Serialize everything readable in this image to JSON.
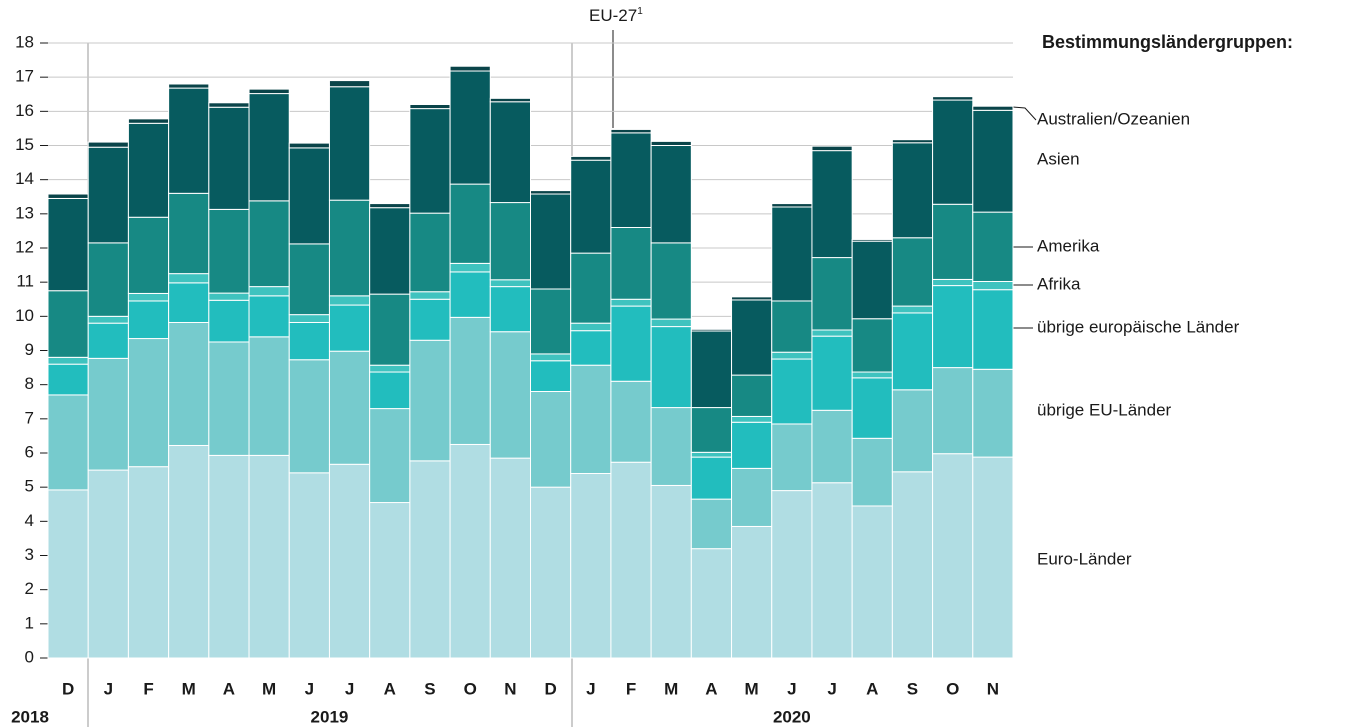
{
  "chart_data": {
    "type": "stacked_bar",
    "legend_title": "Bestimmungsländergruppen:",
    "annotation": {
      "text": "EU-27",
      "footnote": "1"
    },
    "categories": [
      "D",
      "J",
      "F",
      "M",
      "A",
      "M",
      "J",
      "J",
      "A",
      "S",
      "O",
      "N",
      "D",
      "J",
      "F",
      "M",
      "A",
      "M",
      "J",
      "J",
      "A",
      "S",
      "O",
      "N"
    ],
    "year_groups": [
      {
        "label": "2018",
        "months": 1
      },
      {
        "label": "2019",
        "months": 12
      },
      {
        "label": "2020",
        "months": 11
      }
    ],
    "ylim": [
      0,
      18
    ],
    "yticks": [
      0,
      1,
      2,
      3,
      4,
      5,
      6,
      7,
      8,
      9,
      10,
      11,
      12,
      13,
      14,
      15,
      16,
      17,
      18
    ],
    "grid": true,
    "series": [
      {
        "name": "Euro-Länder",
        "color": "#b0dde3",
        "values": [
          4.92,
          5.5,
          5.6,
          6.22,
          5.93,
          5.93,
          5.42,
          5.67,
          4.55,
          5.77,
          6.25,
          5.85,
          5.0,
          5.4,
          5.73,
          5.05,
          3.2,
          3.85,
          4.9,
          5.13,
          4.45,
          5.45,
          5.98,
          5.88
        ]
      },
      {
        "name": "übrige EU-Länder",
        "color": "#76cbcd",
        "values": [
          2.78,
          3.27,
          3.75,
          3.6,
          3.32,
          3.47,
          3.31,
          3.31,
          2.75,
          3.53,
          3.72,
          3.7,
          2.8,
          3.17,
          2.37,
          2.28,
          1.45,
          1.7,
          1.95,
          2.12,
          1.98,
          2.4,
          2.52,
          2.57
        ]
      },
      {
        "name": "übrige europäische Länder",
        "color": "#22bdbe",
        "values": [
          0.9,
          1.03,
          1.1,
          1.16,
          1.22,
          1.2,
          1.09,
          1.35,
          1.07,
          1.2,
          1.33,
          1.32,
          0.9,
          1.01,
          2.2,
          2.37,
          1.23,
          1.35,
          1.9,
          2.17,
          1.77,
          2.25,
          2.4,
          2.33
        ]
      },
      {
        "name": "Afrika",
        "color": "#3fc3bf",
        "values": [
          0.2,
          0.2,
          0.22,
          0.27,
          0.21,
          0.27,
          0.23,
          0.27,
          0.2,
          0.22,
          0.25,
          0.2,
          0.2,
          0.22,
          0.2,
          0.22,
          0.14,
          0.17,
          0.2,
          0.18,
          0.17,
          0.2,
          0.18,
          0.24
        ]
      },
      {
        "name": "Amerika",
        "color": "#178984",
        "values": [
          1.95,
          2.15,
          2.23,
          2.35,
          2.45,
          2.51,
          2.07,
          2.8,
          2.08,
          2.3,
          2.32,
          2.26,
          1.9,
          2.05,
          2.1,
          2.23,
          1.31,
          1.21,
          1.5,
          2.12,
          1.56,
          2.0,
          2.2,
          2.03
        ]
      },
      {
        "name": "Asien",
        "color": "#075b5f",
        "values": [
          2.7,
          2.8,
          2.75,
          3.08,
          2.99,
          3.14,
          2.81,
          3.32,
          2.53,
          3.06,
          3.31,
          2.95,
          2.78,
          2.72,
          2.77,
          2.85,
          2.24,
          2.2,
          2.75,
          3.13,
          2.27,
          2.78,
          3.05,
          2.98
        ]
      },
      {
        "name": "Australien/Ozeanien",
        "color": "#0a4449",
        "values": [
          0.13,
          0.15,
          0.13,
          0.12,
          0.13,
          0.13,
          0.14,
          0.18,
          0.12,
          0.12,
          0.14,
          0.1,
          0.1,
          0.11,
          0.1,
          0.12,
          0.05,
          0.09,
          0.1,
          0.13,
          0.05,
          0.09,
          0.1,
          0.12
        ]
      }
    ]
  }
}
